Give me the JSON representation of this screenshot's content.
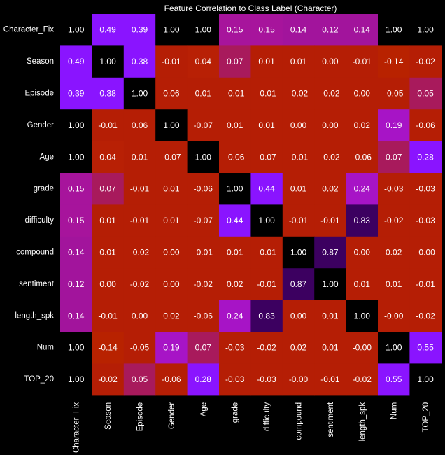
{
  "chart_data": {
    "type": "heatmap",
    "title": "Feature Correlation to Class Label (Character)",
    "labels": [
      "Character_Fix",
      "Season",
      "Episode",
      "Gender",
      "Age",
      "grade",
      "difficulty",
      "compound",
      "sentiment",
      "length_spk",
      "Num",
      "TOP_20"
    ],
    "values": [
      [
        1.0,
        0.49,
        0.39,
        1.0,
        1.0,
        0.15,
        0.15,
        0.14,
        0.12,
        0.14,
        1.0,
        1.0
      ],
      [
        0.49,
        1.0,
        0.38,
        -0.01,
        0.04,
        0.07,
        0.01,
        0.01,
        0.0,
        -0.01,
        -0.14,
        -0.02
      ],
      [
        0.39,
        0.38,
        1.0,
        0.06,
        0.01,
        -0.01,
        -0.01,
        -0.02,
        -0.02,
        0.0,
        -0.05,
        0.05
      ],
      [
        1.0,
        -0.01,
        0.06,
        1.0,
        -0.07,
        0.01,
        0.01,
        0.0,
        0.0,
        0.02,
        0.19,
        -0.06
      ],
      [
        1.0,
        0.04,
        0.01,
        -0.07,
        1.0,
        -0.06,
        -0.07,
        -0.01,
        -0.02,
        -0.06,
        0.07,
        0.28
      ],
      [
        0.15,
        0.07,
        -0.01,
        0.01,
        -0.06,
        1.0,
        0.44,
        0.01,
        0.02,
        0.24,
        -0.03,
        -0.03
      ],
      [
        0.15,
        0.01,
        -0.01,
        0.01,
        -0.07,
        0.44,
        1.0,
        -0.01,
        -0.01,
        0.83,
        -0.02,
        -0.03
      ],
      [
        0.14,
        0.01,
        -0.02,
        0.0,
        -0.01,
        0.01,
        -0.01,
        1.0,
        0.87,
        0.0,
        0.02,
        -0.0
      ],
      [
        0.12,
        0.0,
        -0.02,
        0.0,
        -0.02,
        0.02,
        -0.01,
        0.87,
        1.0,
        0.01,
        0.01,
        -0.01
      ],
      [
        0.14,
        -0.01,
        0.0,
        0.02,
        -0.06,
        0.24,
        0.83,
        0.0,
        0.01,
        1.0,
        -0.0,
        -0.02
      ],
      [
        1.0,
        -0.14,
        -0.05,
        0.19,
        0.07,
        -0.03,
        -0.02,
        0.02,
        0.01,
        -0.0,
        1.0,
        0.55
      ],
      [
        1.0,
        -0.02,
        0.05,
        -0.06,
        0.28,
        -0.03,
        -0.03,
        -0.0,
        -0.01,
        -0.02,
        0.55,
        1.0
      ]
    ],
    "cell_colors": [
      [
        "#000000",
        "#8a14ff",
        "#8a14ff",
        "#000000",
        "#000000",
        "#a7149c",
        "#a7149c",
        "#a2149c",
        "#a2149c",
        "#a2149c",
        "#000000",
        "#000000"
      ],
      [
        "#8a14ff",
        "#000000",
        "#8a14ff",
        "#b51e05",
        "#b82005",
        "#a81a5c",
        "#b51e05",
        "#b51e05",
        "#b51e05",
        "#b51e05",
        "#b82200",
        "#b51e05"
      ],
      [
        "#8a14ff",
        "#8a14ff",
        "#000000",
        "#b51e05",
        "#b51e05",
        "#b51e05",
        "#b51e05",
        "#b51e05",
        "#b51e05",
        "#b51e05",
        "#b51e05",
        "#a81a5c"
      ],
      [
        "#000000",
        "#b51e05",
        "#b51e05",
        "#000000",
        "#b51e05",
        "#b51e05",
        "#b51e05",
        "#b51e05",
        "#b51e05",
        "#b51e05",
        "#a714c6",
        "#b51e05"
      ],
      [
        "#000000",
        "#b82005",
        "#b51e05",
        "#b51e05",
        "#000000",
        "#b51e05",
        "#b51e05",
        "#b51e05",
        "#b51e05",
        "#b51e05",
        "#a81a5c",
        "#8a14ff"
      ],
      [
        "#a7149c",
        "#a81a5c",
        "#b51e05",
        "#b51e05",
        "#b51e05",
        "#000000",
        "#8a14ff",
        "#b51e05",
        "#b51e05",
        "#a714c6",
        "#b51e05",
        "#b51e05"
      ],
      [
        "#a7149c",
        "#b51e05",
        "#b51e05",
        "#b51e05",
        "#b51e05",
        "#8a14ff",
        "#000000",
        "#b51e05",
        "#b51e05",
        "#3c0060",
        "#b51e05",
        "#b51e05"
      ],
      [
        "#a2149c",
        "#b51e05",
        "#b51e05",
        "#b51e05",
        "#b51e05",
        "#b51e05",
        "#b51e05",
        "#000000",
        "#3c0060",
        "#b51e05",
        "#b51e05",
        "#b51e05"
      ],
      [
        "#a2149c",
        "#b51e05",
        "#b51e05",
        "#b51e05",
        "#b51e05",
        "#b51e05",
        "#b51e05",
        "#3c0060",
        "#000000",
        "#b51e05",
        "#b51e05",
        "#b51e05"
      ],
      [
        "#a2149c",
        "#b51e05",
        "#b51e05",
        "#b51e05",
        "#b51e05",
        "#a714c6",
        "#3c0060",
        "#b51e05",
        "#b51e05",
        "#000000",
        "#b51e05",
        "#b51e05"
      ],
      [
        "#000000",
        "#b82200",
        "#b51e05",
        "#a714c6",
        "#a81a5c",
        "#b51e05",
        "#b51e05",
        "#b51e05",
        "#b51e05",
        "#b51e05",
        "#000000",
        "#8a14ff"
      ],
      [
        "#000000",
        "#b51e05",
        "#a81a5c",
        "#b51e05",
        "#8a14ff",
        "#b51e05",
        "#b51e05",
        "#b51e05",
        "#b51e05",
        "#b51e05",
        "#8a14ff",
        "#000000"
      ]
    ],
    "text_color": "#ffffff",
    "background": "#000000"
  }
}
